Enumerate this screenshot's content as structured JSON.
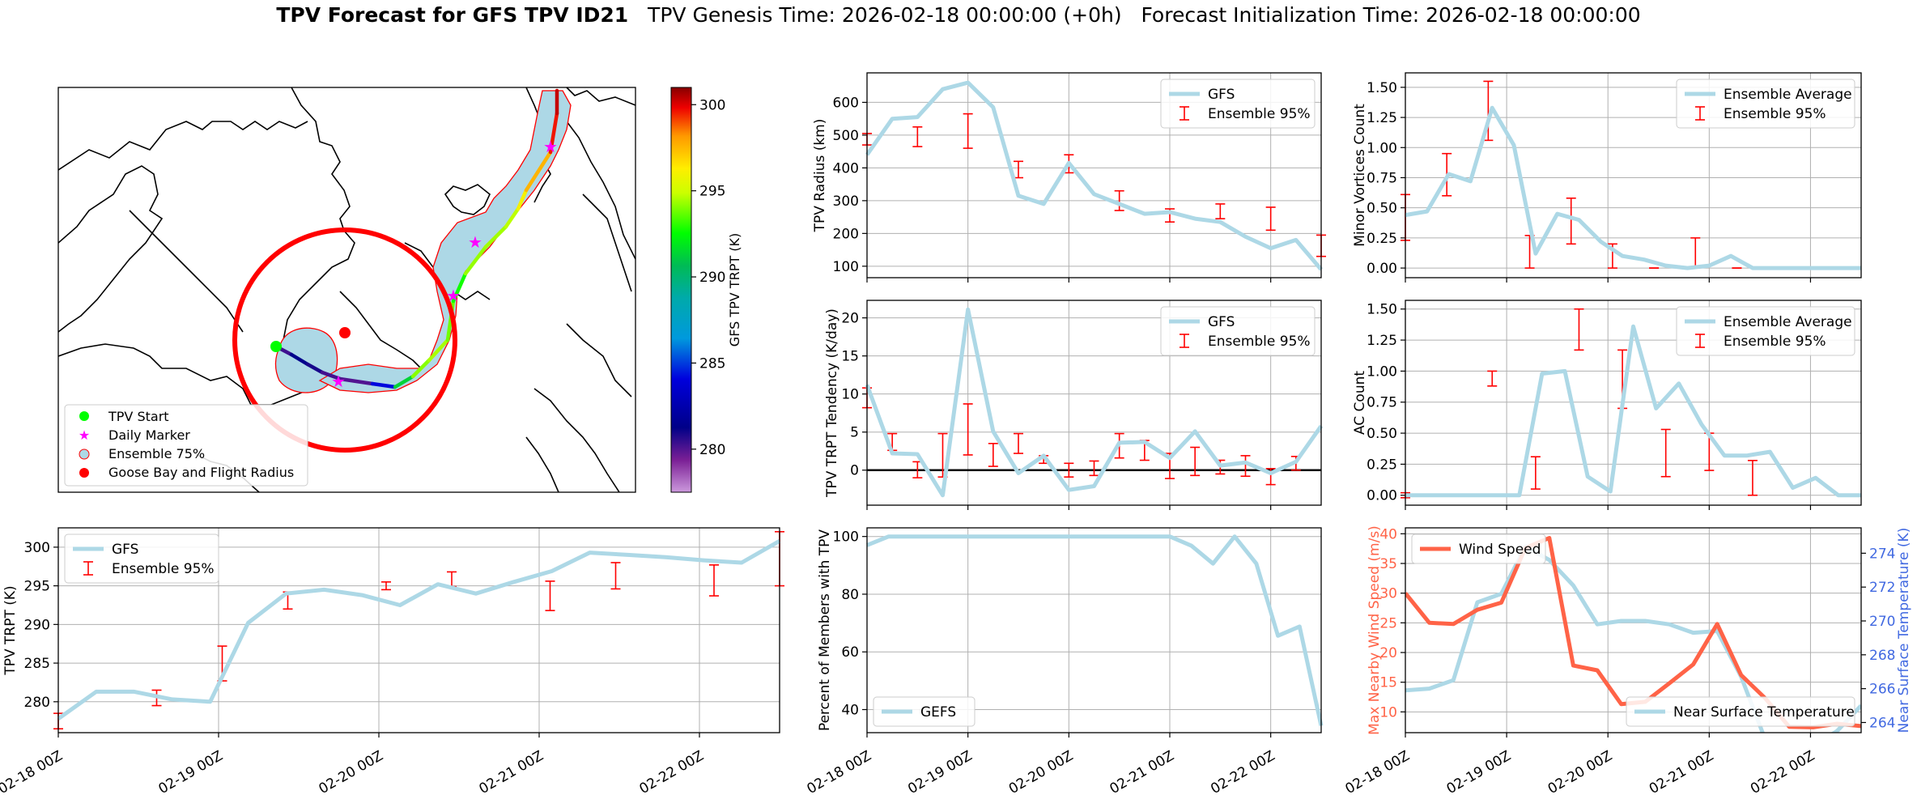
{
  "suptitle": {
    "bold": "TPV Forecast for GFS TPV ID21",
    "genesis": "TPV Genesis Time: 2026-02-18 00:00:00 (+0h)",
    "init": "Forecast Initialization Time: 2026-02-18 00:00:00"
  },
  "colors": {
    "gfs_line": "#add8e6",
    "errorbar": "#ff0000",
    "wind": "#ff6347",
    "temp_axis": "#4169e1",
    "zero_line": "#000000",
    "grid": "#b0b0b0",
    "ensemble_fill": "#add8e6",
    "ensemble_edge": "#ff0000",
    "start_marker": "#00ff00",
    "daily_marker": "#ff00ff",
    "goose_bay": "#ff0000"
  },
  "chart_data": [
    {
      "id": "map",
      "type": "map",
      "legend": [
        "TPV Start",
        "Daily Marker",
        "Ensemble 75%",
        "Goose Bay and Flight Radius"
      ],
      "legend_loc": "lower-left",
      "colorbar": {
        "label": "GFS TPV TRPT (K)",
        "ticks": [
          280,
          285,
          290,
          295,
          300
        ],
        "range": [
          277.5,
          301
        ],
        "colormap": "nipy_spectral"
      },
      "track_color_values": [
        280.3,
        281.5,
        280.7,
        280.0,
        280.0,
        290.2,
        294.0,
        294.5,
        293.8,
        292.5,
        295.0,
        294.0,
        295.5,
        297.0,
        299.5,
        300.3
      ]
    },
    {
      "id": "trpt",
      "type": "line",
      "ylabel": "TPV TRPT (K)",
      "ylim": [
        276.0,
        302.5
      ],
      "yticks": [
        280,
        285,
        290,
        295,
        300
      ],
      "legend": [
        "GFS",
        "Ensemble 95%"
      ],
      "legend_loc": "upper-left",
      "show_xticklabels": true,
      "gfs": [
        277.8,
        281.3,
        281.3,
        280.3,
        280.0,
        290.2,
        294.0,
        294.5,
        293.8,
        292.5,
        295.2,
        294.0,
        295.5,
        296.9,
        299.3,
        299.0,
        298.7,
        298.3,
        298.0,
        300.8
      ],
      "ens": [
        [
          0,
          276.5,
          278.5
        ],
        [
          3,
          279.5,
          281.5
        ],
        [
          5,
          282.7,
          287.2
        ],
        [
          7,
          292.0,
          294.2
        ],
        [
          10,
          294.5,
          295.5
        ],
        [
          12,
          294.9,
          296.8
        ],
        [
          15,
          291.8,
          295.6
        ],
        [
          17,
          294.6,
          298.0
        ],
        [
          20,
          293.7,
          297.7
        ],
        [
          22,
          295.0,
          302.0
        ]
      ]
    },
    {
      "id": "radius",
      "type": "line",
      "ylabel": "TPV Radius (km)",
      "ylim": [
        65,
        690
      ],
      "yticks": [
        100,
        200,
        300,
        400,
        500,
        600
      ],
      "legend": [
        "GFS",
        "Ensemble 95%"
      ],
      "legend_loc": "upper-right",
      "show_xticklabels": false,
      "gfs": [
        440,
        550,
        555,
        640,
        660,
        585,
        315,
        290,
        415,
        320,
        290,
        260,
        265,
        245,
        235,
        190,
        155,
        180,
        90
      ],
      "ens": [
        [
          0,
          470,
          505
        ],
        [
          2.5,
          465,
          525
        ],
        [
          5,
          460,
          565
        ],
        [
          7.5,
          370,
          420
        ],
        [
          10,
          385,
          440
        ],
        [
          12.5,
          270,
          330
        ],
        [
          15,
          235,
          275
        ],
        [
          17.5,
          245,
          290
        ],
        [
          20,
          210,
          280
        ],
        [
          22.5,
          130,
          195
        ]
      ]
    },
    {
      "id": "tendency",
      "type": "line",
      "ylabel": "TPV TRPT Tendency (K/day)",
      "ylim": [
        -4.6,
        22.3
      ],
      "yticks": [
        0,
        5,
        10,
        15,
        20
      ],
      "legend": [
        "GFS",
        "Ensemble 95%"
      ],
      "legend_loc": "upper-right",
      "zero_line": true,
      "show_xticklabels": false,
      "gfs": [
        11.2,
        2.2,
        2.1,
        -3.3,
        21.1,
        5.1,
        -0.4,
        1.9,
        -2.6,
        -2.1,
        3.6,
        3.7,
        1.6,
        5.1,
        0.6,
        1.0,
        -0.4,
        1.1,
        5.8
      ],
      "ens": [
        [
          0,
          8.2,
          10.8
        ],
        [
          2.5,
          2.6,
          4.8
        ],
        [
          5,
          -1.0,
          1.1
        ],
        [
          7.5,
          -0.9,
          4.8
        ],
        [
          10,
          2.0,
          8.7
        ],
        [
          12.5,
          0.5,
          3.5
        ],
        [
          15,
          2.2,
          4.8
        ],
        [
          17.5,
          0.9,
          1.9
        ],
        [
          20,
          -0.9,
          0.9
        ],
        [
          22.5,
          -0.7,
          1.2
        ],
        [
          25,
          1.6,
          4.8
        ],
        [
          27.5,
          1.3,
          3.9
        ],
        [
          30,
          -1.1,
          2.2
        ],
        [
          32.5,
          -0.7,
          3.0
        ],
        [
          35,
          -0.5,
          1.3
        ],
        [
          37.5,
          -0.8,
          1.9
        ],
        [
          40,
          -1.9,
          0.2
        ],
        [
          42.5,
          0.0,
          1.8
        ]
      ]
    },
    {
      "id": "members",
      "type": "line",
      "ylabel": "Percent of Members with TPV",
      "ylim": [
        32,
        103
      ],
      "yticks": [
        40,
        60,
        80,
        100
      ],
      "legend": [
        "GEFS"
      ],
      "legend_loc": "lower-left",
      "show_xticklabels": true,
      "gefs": [
        97,
        100,
        100,
        100,
        100,
        100,
        100,
        100,
        100,
        100,
        100,
        100,
        100,
        100,
        100,
        96.8,
        90.6,
        100,
        90.6,
        65.6,
        68.8,
        34.4
      ]
    },
    {
      "id": "minor",
      "type": "line",
      "ylabel": "Minor Vortices Count",
      "ylim": [
        -0.08,
        1.62
      ],
      "yticks": [
        0.0,
        0.25,
        0.5,
        0.75,
        1.0,
        1.25,
        1.5
      ],
      "legend": [
        "Ensemble Average",
        "Ensemble 95%"
      ],
      "legend_loc": "upper-right",
      "show_xticklabels": false,
      "avg": [
        0.44,
        0.47,
        0.78,
        0.72,
        1.33,
        1.02,
        0.12,
        0.45,
        0.4,
        0.22,
        0.1,
        0.07,
        0.02,
        0.0,
        0.02,
        0.1,
        0.0,
        0.0,
        0.0,
        0.0,
        0.0,
        0.0
      ],
      "ens": [
        [
          0,
          0.23,
          0.61
        ],
        [
          3,
          0.6,
          0.95
        ],
        [
          6,
          1.06,
          1.55
        ],
        [
          9,
          0.0,
          0.27
        ],
        [
          12,
          0.2,
          0.58
        ],
        [
          15,
          0.0,
          0.2
        ],
        [
          18,
          0.0,
          0.0
        ],
        [
          21,
          0.0,
          0.25
        ],
        [
          24,
          0.0,
          0.0
        ],
        [
          27,
          0.0,
          0.0
        ]
      ]
    },
    {
      "id": "ac",
      "type": "line",
      "ylabel": "AC Count",
      "ylim": [
        -0.08,
        1.57
      ],
      "yticks": [
        0.0,
        0.25,
        0.5,
        0.75,
        1.0,
        1.25,
        1.5
      ],
      "legend": [
        "Ensemble Average",
        "Ensemble 95%"
      ],
      "legend_loc": "upper-right",
      "show_xticklabels": false,
      "avg": [
        0.0,
        0.0,
        0.0,
        0.0,
        0.0,
        0.0,
        0.98,
        1.0,
        0.15,
        0.03,
        1.36,
        0.7,
        0.9,
        0.57,
        0.32,
        0.32,
        0.35,
        0.06,
        0.14,
        0.0,
        0.0
      ],
      "ens": [
        [
          0,
          -0.02,
          0.02
        ],
        [
          6,
          0.88,
          1.0
        ],
        [
          9,
          0.05,
          0.31
        ],
        [
          12,
          1.17,
          1.5
        ],
        [
          15,
          0.7,
          1.17
        ],
        [
          18,
          0.15,
          0.53
        ],
        [
          21,
          0.2,
          0.5
        ],
        [
          24,
          0.0,
          0.28
        ]
      ]
    },
    {
      "id": "wind_temp",
      "type": "line",
      "ylabel_left": "Max Nearby Wind Speed (m/s)",
      "ylabel_right": "Near Surface Temperature (K)",
      "ylim_left": [
        6.5,
        41
      ],
      "ylim_right": [
        263.4,
        275.5
      ],
      "yticks_left": [
        10,
        15,
        20,
        25,
        30,
        35,
        40
      ],
      "yticks_right": [
        264,
        266,
        268,
        270,
        272,
        274
      ],
      "legend_left": [
        "Wind Speed"
      ],
      "legend_right": [
        "Near Surface Temperature"
      ],
      "show_xticklabels": true,
      "wind": [
        30.0,
        25.0,
        24.8,
        27.2,
        28.4,
        37.6,
        39.3,
        17.8,
        17.0,
        11.3,
        11.7,
        14.8,
        18.0,
        24.8,
        16.2,
        12.3,
        7.5,
        7.4,
        8.0,
        7.6
      ],
      "temp": [
        265.9,
        266.0,
        266.5,
        271.1,
        271.6,
        274.4,
        273.6,
        272.1,
        269.8,
        270.0,
        270.0,
        269.8,
        269.3,
        269.4,
        266.7,
        263.0,
        262.3,
        262.6,
        263.5,
        265.0
      ]
    }
  ],
  "time_axis": {
    "xlim": [
      0,
      4.5
    ],
    "ticks": [
      0,
      1,
      2,
      3,
      4
    ],
    "labels": [
      "02-18 00Z",
      "02-19 00Z",
      "02-20 00Z",
      "02-21 00Z",
      "02-22 00Z"
    ]
  }
}
